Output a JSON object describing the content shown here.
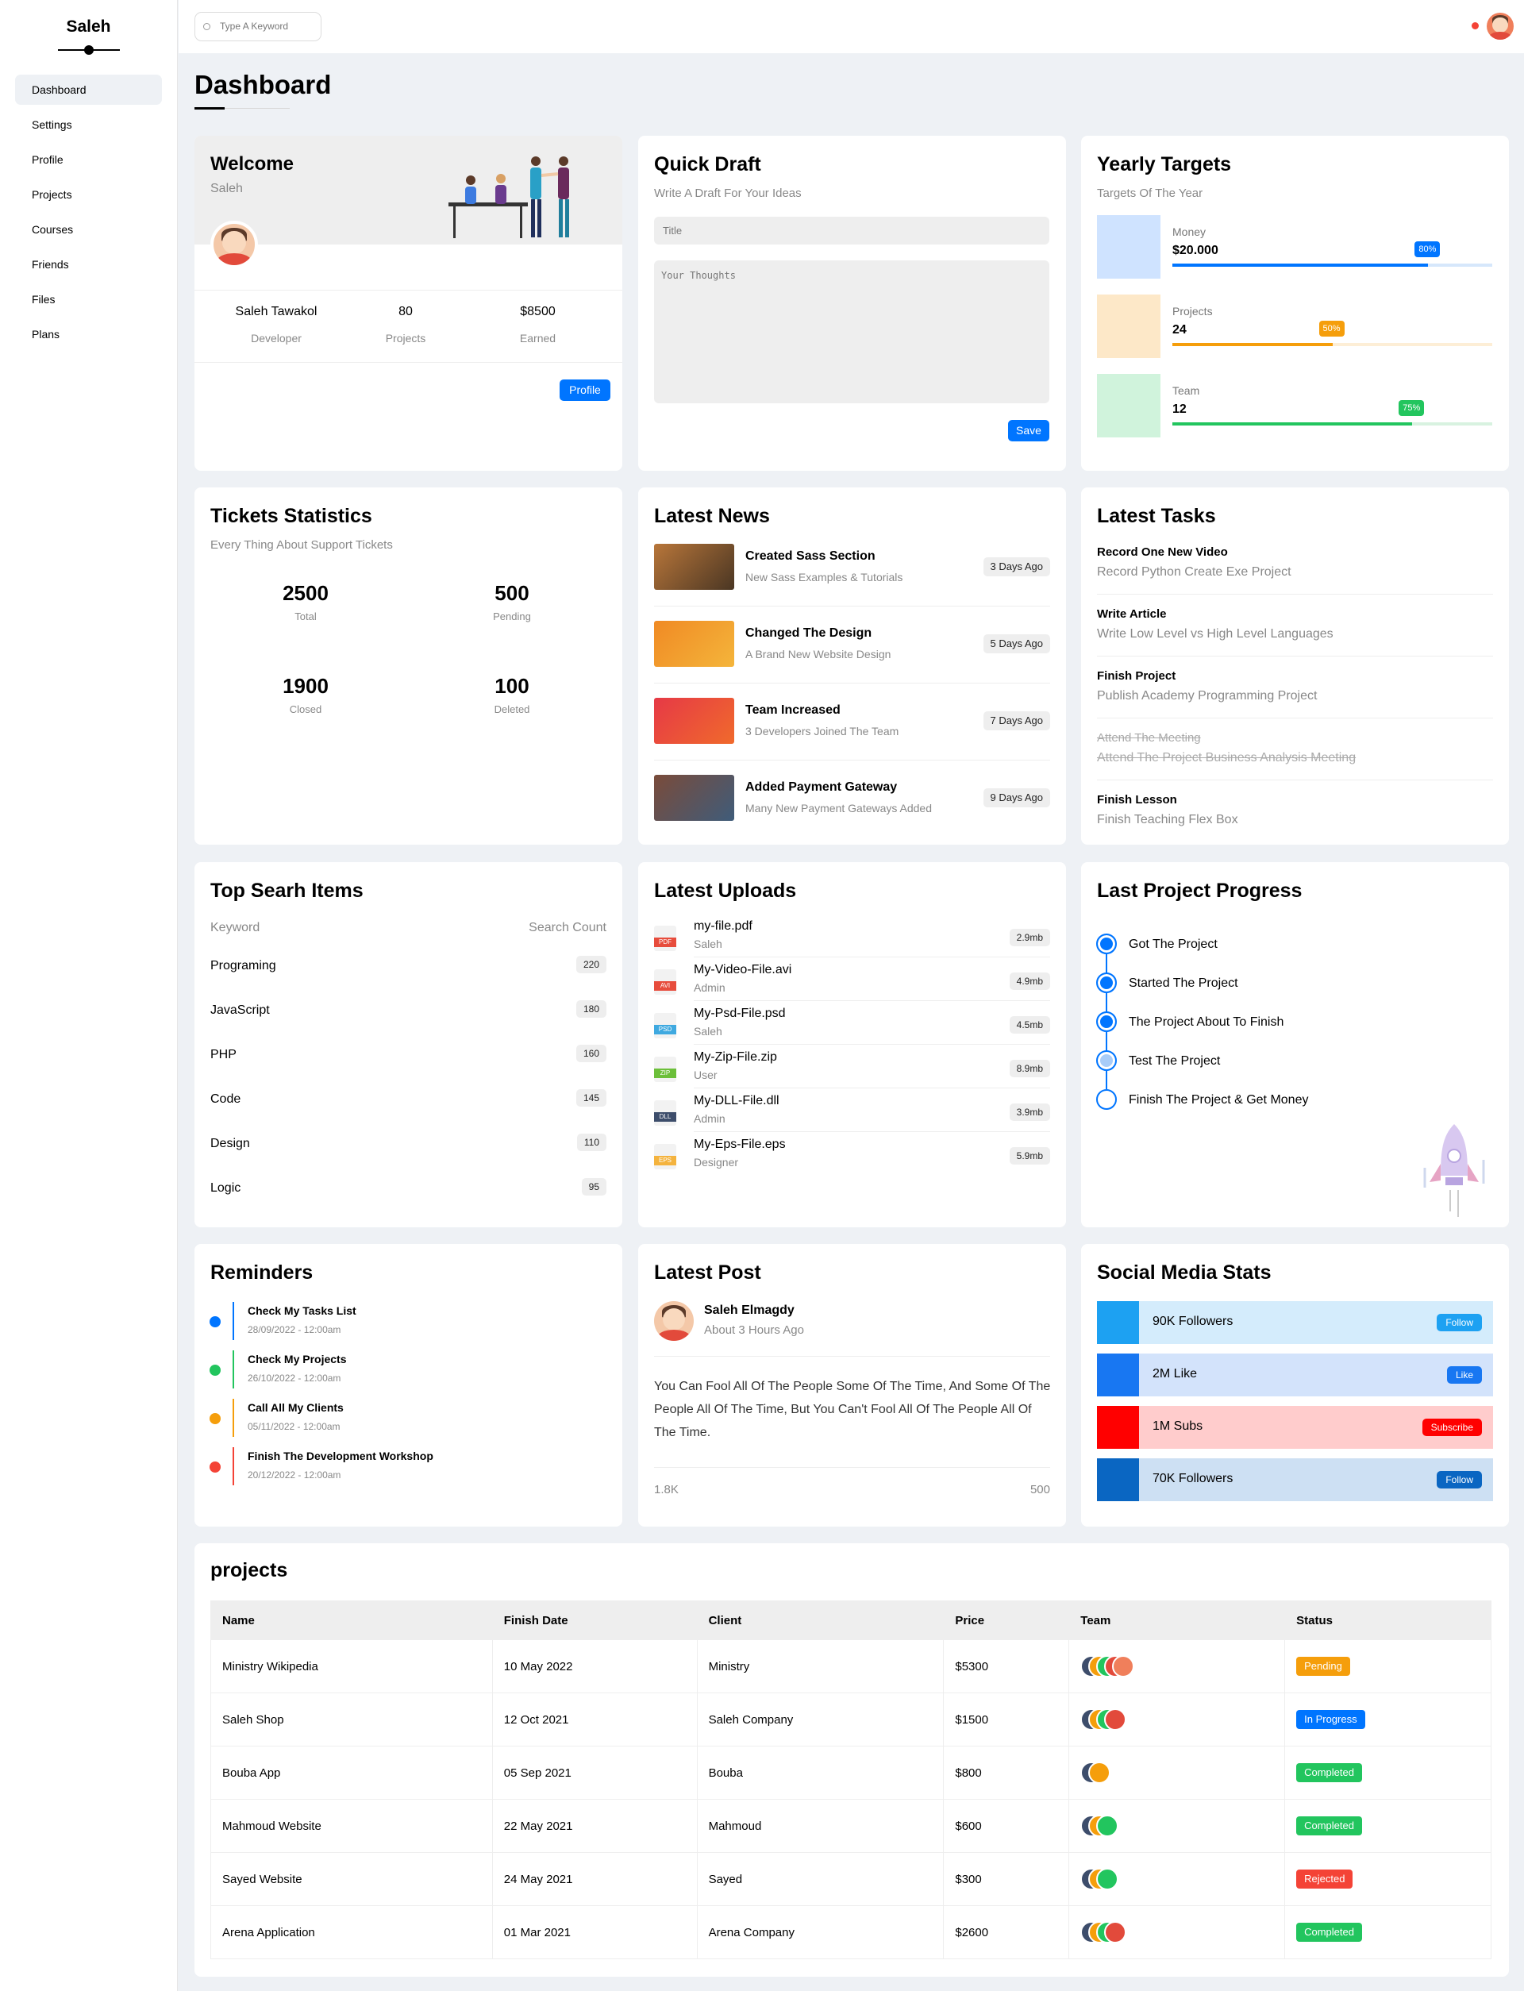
{
  "sidebar": {
    "brand": "Saleh",
    "items": [
      "Dashboard",
      "Settings",
      "Profile",
      "Projects",
      "Courses",
      "Friends",
      "Files",
      "Plans"
    ]
  },
  "header": {
    "search_placeholder": "Type A Keyword"
  },
  "page_title": "Dashboard",
  "welcome": {
    "title": "Welcome",
    "name": "Saleh",
    "full_name": "Saleh Tawakol",
    "role": "Developer",
    "projects_value": "80",
    "projects_label": "Projects",
    "earned_value": "$8500",
    "earned_label": "Earned",
    "button": "Profile"
  },
  "quick_draft": {
    "title": "Quick Draft",
    "subtitle": "Write A Draft For Your Ideas",
    "title_placeholder": "Title",
    "body_placeholder": "Your Thoughts",
    "button": "Save"
  },
  "yearly": {
    "title": "Yearly Targets",
    "subtitle": "Targets Of The Year",
    "items": [
      {
        "label": "Money",
        "value": "$20.000",
        "percent": "80%",
        "progress": 80,
        "color": "#0075ff",
        "box": "#cfe3ff",
        "track": "#d6e7fb"
      },
      {
        "label": "Projects",
        "value": "24",
        "percent": "50%",
        "progress": 50,
        "color": "#f59e0b",
        "box": "#fde8c8",
        "track": "#fdeed6"
      },
      {
        "label": "Team",
        "value": "12",
        "percent": "75%",
        "progress": 75,
        "color": "#22c55e",
        "box": "#d0f3dc",
        "track": "#d8f2e0"
      }
    ]
  },
  "tickets": {
    "title": "Tickets Statistics",
    "subtitle": "Every Thing About Support Tickets",
    "stats": [
      {
        "value": "2500",
        "label": "Total"
      },
      {
        "value": "500",
        "label": "Pending"
      },
      {
        "value": "1900",
        "label": "Closed"
      },
      {
        "value": "100",
        "label": "Deleted"
      }
    ]
  },
  "news": {
    "title": "Latest News",
    "items": [
      {
        "title": "Created Sass Section",
        "desc": "New Sass Examples & Tutorials",
        "time": "3 Days Ago",
        "c1": "#b8763a",
        "c2": "#4a3623"
      },
      {
        "title": "Changed The Design",
        "desc": "A Brand New Website Design",
        "time": "5 Days Ago",
        "c1": "#f08a24",
        "c2": "#f4b53b"
      },
      {
        "title": "Team Increased",
        "desc": "3 Developers Joined The Team",
        "time": "7 Days Ago",
        "c1": "#e63946",
        "c2": "#f06a2c"
      },
      {
        "title": "Added Payment Gateway",
        "desc": "Many New Payment Gateways Added",
        "time": "9 Days Ago",
        "c1": "#7a4b3a",
        "c2": "#3f5c7a"
      }
    ]
  },
  "tasks": {
    "title": "Latest Tasks",
    "items": [
      {
        "title": "Record One New Video",
        "desc": "Record Python Create Exe Project",
        "done": false
      },
      {
        "title": "Write Article",
        "desc": "Write Low Level vs High Level Languages",
        "done": false
      },
      {
        "title": "Finish Project",
        "desc": "Publish Academy Programming Project",
        "done": false
      },
      {
        "title": "Attend The Meeting",
        "desc": "Attend The Project Business Analysis Meeting",
        "done": true
      },
      {
        "title": "Finish Lesson",
        "desc": "Finish Teaching Flex Box",
        "done": false
      }
    ]
  },
  "search_items": {
    "title": "Top Searh Items",
    "col_keyword": "Keyword",
    "col_count": "Search Count",
    "items": [
      {
        "k": "Programing",
        "c": "220"
      },
      {
        "k": "JavaScript",
        "c": "180"
      },
      {
        "k": "PHP",
        "c": "160"
      },
      {
        "k": "Code",
        "c": "145"
      },
      {
        "k": "Design",
        "c": "110"
      },
      {
        "k": "Logic",
        "c": "95"
      }
    ]
  },
  "uploads": {
    "title": "Latest Uploads",
    "items": [
      {
        "name": "my-file.pdf",
        "user": "Saleh",
        "size": "2.9mb",
        "ext": "PDF",
        "color": "#e74c3c"
      },
      {
        "name": "My-Video-File.avi",
        "user": "Admin",
        "size": "4.9mb",
        "ext": "AVI",
        "color": "#e74c3c"
      },
      {
        "name": "My-Psd-File.psd",
        "user": "Saleh",
        "size": "4.5mb",
        "ext": "PSD",
        "color": "#3fa9e0"
      },
      {
        "name": "My-Zip-File.zip",
        "user": "User",
        "size": "8.9mb",
        "ext": "ZIP",
        "color": "#6cbf3a"
      },
      {
        "name": "My-DLL-File.dll",
        "user": "Admin",
        "size": "3.9mb",
        "ext": "DLL",
        "color": "#3d4d6b"
      },
      {
        "name": "My-Eps-File.eps",
        "user": "Designer",
        "size": "5.9mb",
        "ext": "EPS",
        "color": "#f4b33e"
      }
    ]
  },
  "progress": {
    "title": "Last Project Progress",
    "items": [
      {
        "label": "Got The Project",
        "state": "done"
      },
      {
        "label": "Started The Project",
        "state": "done"
      },
      {
        "label": "The Project About To Finish",
        "state": "done"
      },
      {
        "label": "Test The Project",
        "state": "current"
      },
      {
        "label": "Finish The Project & Get Money",
        "state": "todo"
      }
    ]
  },
  "reminders": {
    "title": "Reminders",
    "items": [
      {
        "title": "Check My Tasks List",
        "date": "28/09/2022 - 12:00am",
        "color": "#0075ff"
      },
      {
        "title": "Check My Projects",
        "date": "26/10/2022 - 12:00am",
        "color": "#22c55e"
      },
      {
        "title": "Call All My Clients",
        "date": "05/11/2022 - 12:00am",
        "color": "#f59e0b"
      },
      {
        "title": "Finish The Development Workshop",
        "date": "20/12/2022 - 12:00am",
        "color": "#f44336"
      }
    ]
  },
  "post": {
    "title": "Latest Post",
    "author": "Saleh Elmagdy",
    "time": "About 3 Hours Ago",
    "text": "You Can Fool All Of The People Some Of The Time, And Some Of The People All Of The Time, But You Can't Fool All Of The People All Of The Time.",
    "likes": "1.8K",
    "comments": "500"
  },
  "social": {
    "title": "Social Media Stats",
    "items": [
      {
        "label": "90K Followers",
        "button": "Follow",
        "color": "#1da1f2",
        "bg": "#d4ecfc"
      },
      {
        "label": "2M Like",
        "button": "Like",
        "color": "#1877f2",
        "bg": "#d3e3fb"
      },
      {
        "label": "1M Subs",
        "button": "Subscribe",
        "color": "#ff0000",
        "bg": "#ffcccc"
      },
      {
        "label": "70K Followers",
        "button": "Follow",
        "color": "#0a66c2",
        "bg": "#cde0f3"
      }
    ]
  },
  "projects": {
    "title": "projects",
    "columns": [
      "Name",
      "Finish Date",
      "Client",
      "Price",
      "Team",
      "Status"
    ],
    "rows": [
      {
        "name": "Ministry Wikipedia",
        "date": "10 May 2022",
        "client": "Ministry",
        "price": "$5300",
        "team": 5,
        "status": "Pending",
        "color": "#f59e0b"
      },
      {
        "name": "Saleh Shop",
        "date": "12 Oct 2021",
        "client": "Saleh Company",
        "price": "$1500",
        "team": 4,
        "status": "In Progress",
        "color": "#0075ff"
      },
      {
        "name": "Bouba App",
        "date": "05 Sep 2021",
        "client": "Bouba",
        "price": "$800",
        "team": 2,
        "status": "Completed",
        "color": "#22c55e"
      },
      {
        "name": "Mahmoud Website",
        "date": "22 May 2021",
        "client": "Mahmoud",
        "price": "$600",
        "team": 3,
        "status": "Completed",
        "color": "#22c55e"
      },
      {
        "name": "Sayed Website",
        "date": "24 May 2021",
        "client": "Sayed",
        "price": "$300",
        "team": 3,
        "status": "Rejected",
        "color": "#f44336"
      },
      {
        "name": "Arena Application",
        "date": "01 Mar 2021",
        "client": "Arena Company",
        "price": "$2600",
        "team": 4,
        "status": "Completed",
        "color": "#22c55e"
      }
    ]
  }
}
